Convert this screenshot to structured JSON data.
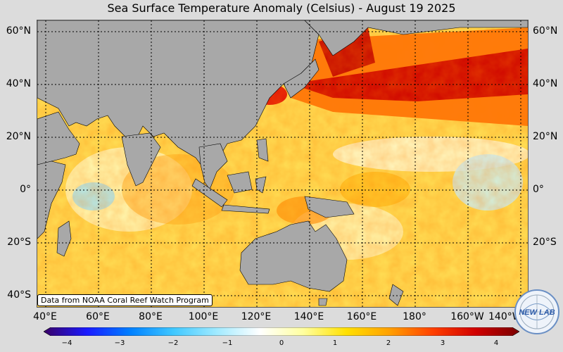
{
  "title": "Sea Surface Temperature Anomaly (Celsius) - August 19 2025",
  "credit": "Data from NOAA Coral Reef Watch Program",
  "logo_text": "NEW LAB",
  "lat_labels": [
    "60°N",
    "40°N",
    "20°N",
    "0°",
    "20°S",
    "40°S"
  ],
  "lon_labels": [
    "40°E",
    "60°E",
    "80°E",
    "100°E",
    "120°E",
    "140°E",
    "160°E",
    "180°",
    "160°W",
    "140°W"
  ],
  "colorbar": {
    "ticks": [
      "−4",
      "−3",
      "−2",
      "−1",
      "0",
      "1",
      "2",
      "3",
      "4"
    ],
    "min": -4,
    "max": 4,
    "colors": [
      "#3a0066",
      "#1a1aff",
      "#0080ff",
      "#40c8ff",
      "#a0eaff",
      "#ffffff",
      "#ffffa0",
      "#ffe000",
      "#ffa000",
      "#ff4000",
      "#d00000",
      "#7a0000"
    ]
  },
  "colors": {
    "land": "#a8a8a8",
    "warm_strong": "#cc0000",
    "warm": "#ff7a00",
    "mild": "#ffd84a",
    "neutral": "#ffffd0",
    "cool": "#9fe7ff"
  }
}
